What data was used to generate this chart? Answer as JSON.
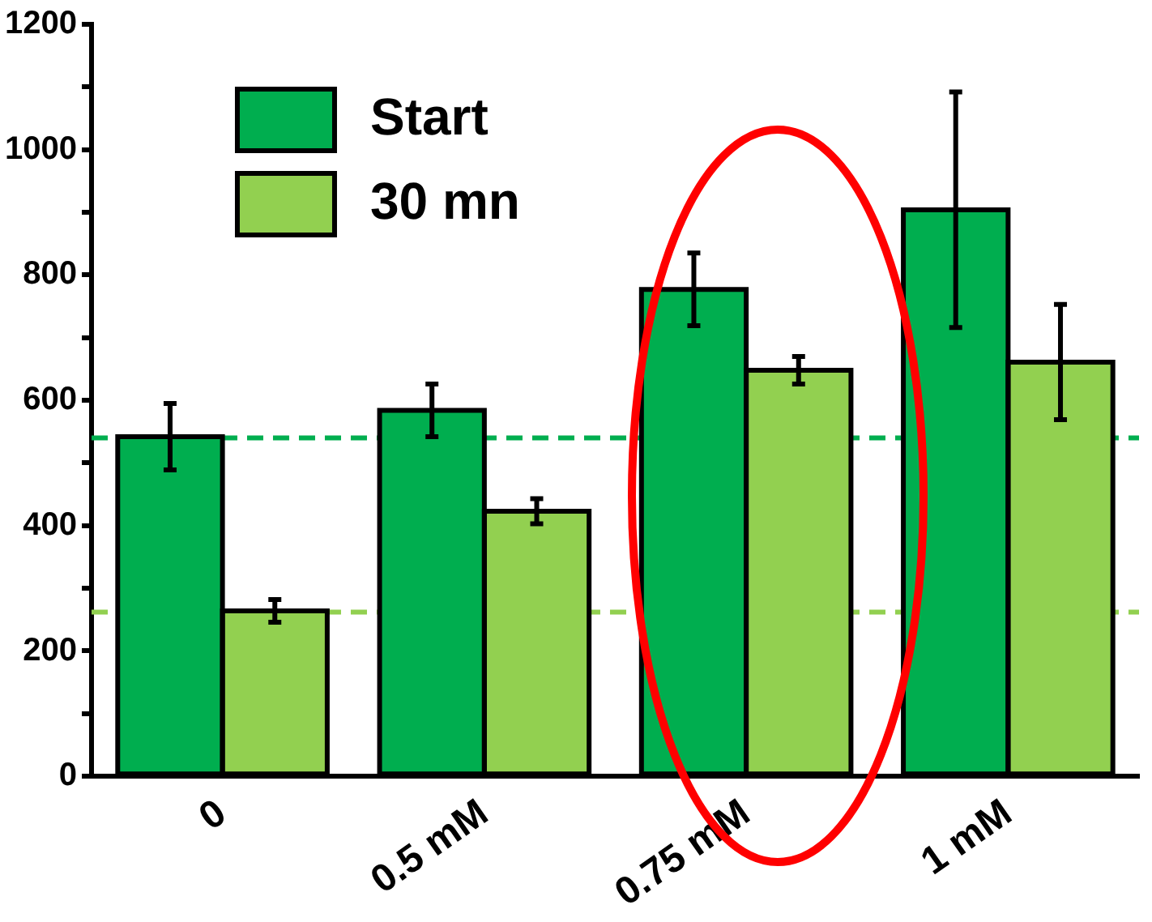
{
  "chart_data": {
    "type": "bar",
    "categories": [
      "0",
      "0.5 mM",
      "0.75 mM",
      "1 mM"
    ],
    "series": [
      {
        "name": "Start",
        "color": "#00ae4f",
        "values": [
          542,
          584,
          777,
          904
        ],
        "errors": [
          53,
          42,
          58,
          188
        ]
      },
      {
        "name": "30 mn",
        "color": "#92d050",
        "values": [
          264,
          423,
          648,
          661
        ],
        "errors": [
          18,
          20,
          22,
          92
        ]
      }
    ],
    "ylim": [
      0,
      1200
    ],
    "yticks": [
      0,
      {
        "value": 100,
        "label": null
      },
      200,
      {
        "value": 300,
        "label": null
      },
      400,
      {
        "value": 500,
        "label": null
      },
      600,
      {
        "value": 700,
        "label": null
      },
      800,
      {
        "value": 900,
        "label": null
      },
      1000,
      {
        "value": 1100,
        "label": null
      },
      1200
    ],
    "ref_lines": [
      {
        "axis": "y",
        "value": 540,
        "label": null,
        "color": "#00ae4f",
        "line_style": "dashed"
      },
      {
        "axis": "y",
        "value": 262,
        "label": null,
        "color": "#92d050",
        "line_style": "dashed"
      }
    ],
    "grid": false,
    "legend": "top left"
  }
}
